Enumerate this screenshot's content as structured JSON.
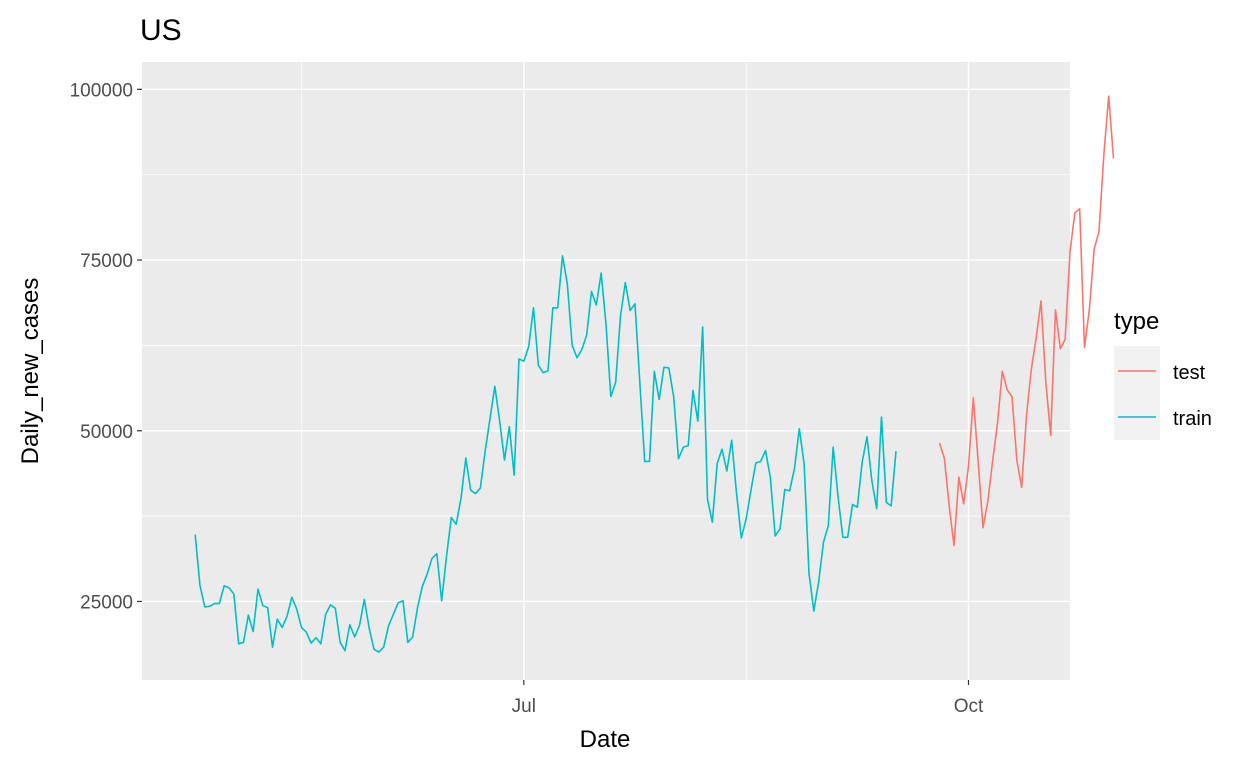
{
  "chart_data": {
    "type": "line",
    "title": "US",
    "xlabel": "Date",
    "ylabel": "Daily_new_cases",
    "x_start": "2020-04-24",
    "x_range": [
      "2020-04-13",
      "2020-10-22"
    ],
    "ylim": [
      13500,
      104000
    ],
    "y_ticks": [
      25000,
      50000,
      75000,
      100000
    ],
    "x_ticks": [
      {
        "label": "Jul",
        "date": "2020-07-01"
      },
      {
        "label": "Oct",
        "date": "2020-10-01"
      }
    ],
    "grid": true,
    "legend": {
      "title": "type",
      "position": "right"
    },
    "series": [
      {
        "name": "train",
        "color": "#00BFC4",
        "start": "2020-04-24",
        "values": [
          34800,
          27300,
          24200,
          24300,
          24700,
          24700,
          27300,
          27000,
          26100,
          18800,
          19000,
          23000,
          20600,
          26800,
          24400,
          24100,
          18300,
          22400,
          21200,
          22800,
          25600,
          23900,
          21200,
          20500,
          18900,
          19700,
          18800,
          23100,
          24500,
          24000,
          19000,
          17800,
          21600,
          19800,
          21500,
          25300,
          21100,
          18000,
          17600,
          18300,
          21400,
          23100,
          24800,
          25100,
          19000,
          19800,
          24100,
          27200,
          29000,
          31300,
          32000,
          25100,
          31600,
          37300,
          36300,
          40100,
          46000,
          41300,
          40800,
          41600,
          47000,
          51800,
          56500,
          51400,
          45700,
          50600,
          43500,
          60500,
          60200,
          62300,
          68000,
          59600,
          58500,
          58800,
          68000,
          68000,
          75600,
          71500,
          62500,
          60700,
          61900,
          64000,
          70400,
          68400,
          73100,
          65600,
          55000,
          57100,
          66800,
          71700,
          67600,
          68600,
          57100,
          45500,
          45500,
          58700,
          54600,
          59300,
          59200,
          55000,
          45900,
          47600,
          47800,
          55900,
          51400,
          65200,
          40000,
          36600,
          45200,
          47300,
          44100,
          48600,
          40900,
          34300,
          37100,
          41300,
          45300,
          45500,
          47100,
          43200,
          34600,
          35600,
          41400,
          41200,
          44500,
          50300,
          45100,
          29100,
          23600,
          27900,
          33700,
          36100,
          47600,
          40400,
          34400,
          34400,
          39200,
          38800,
          45400,
          49100,
          42700,
          38600,
          52000,
          39500,
          39000,
          47000
        ]
      },
      {
        "name": "test",
        "color": "#F8766D",
        "start": "2020-09-25",
        "values": [
          48200,
          46000,
          39000,
          33200,
          43200,
          39300,
          44800,
          54800,
          45500,
          35800,
          39700,
          45600,
          51100,
          58700,
          56000,
          55000,
          45700,
          41700,
          52200,
          59000,
          63600,
          69000,
          57100,
          49300,
          67700,
          62000,
          63400,
          76200,
          81900,
          82500,
          62200,
          67700,
          76600,
          79200,
          90400,
          99000,
          89900
        ]
      }
    ]
  }
}
